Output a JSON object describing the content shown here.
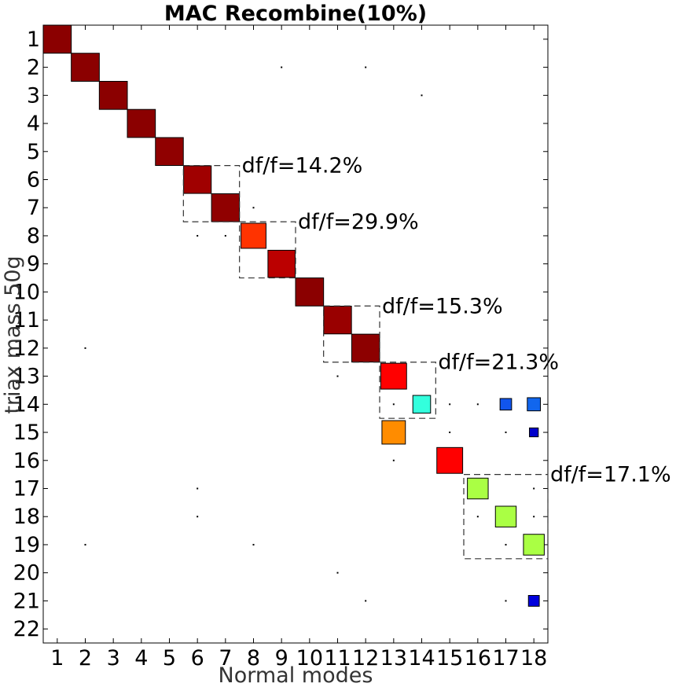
{
  "chart_data": {
    "type": "heatmap",
    "title": "MAC Recombine(10%)",
    "xlabel": "Normal modes",
    "ylabel": "triax mass 50g",
    "x_categories": [
      "1",
      "2",
      "3",
      "4",
      "5",
      "6",
      "7",
      "8",
      "9",
      "10",
      "11",
      "12",
      "13",
      "14",
      "15",
      "16",
      "17",
      "18"
    ],
    "y_categories": [
      "1",
      "2",
      "3",
      "4",
      "5",
      "6",
      "7",
      "8",
      "9",
      "10",
      "11",
      "12",
      "13",
      "14",
      "15",
      "16",
      "17",
      "18",
      "19",
      "20",
      "21",
      "22"
    ],
    "xlim": [
      0.5,
      18.5
    ],
    "ylim": [
      0.5,
      22.5
    ],
    "y_inverted": true,
    "grid": false,
    "encoding": "square size and color both scale with MAC value (0 to 1)",
    "cells": [
      {
        "x": 1,
        "y": 1,
        "value": 1.0,
        "color": "#8b0000"
      },
      {
        "x": 2,
        "y": 2,
        "value": 1.0,
        "color": "#8b0000"
      },
      {
        "x": 3,
        "y": 3,
        "value": 1.0,
        "color": "#8b0000"
      },
      {
        "x": 4,
        "y": 4,
        "value": 1.0,
        "color": "#8b0000"
      },
      {
        "x": 5,
        "y": 5,
        "value": 0.99,
        "color": "#900000"
      },
      {
        "x": 6,
        "y": 6,
        "value": 0.97,
        "color": "#a00000"
      },
      {
        "x": 7,
        "y": 7,
        "value": 0.99,
        "color": "#900000"
      },
      {
        "x": 8,
        "y": 8,
        "value": 0.8,
        "color": "#ff3300"
      },
      {
        "x": 9,
        "y": 9,
        "value": 0.94,
        "color": "#bb0000"
      },
      {
        "x": 10,
        "y": 10,
        "value": 1.0,
        "color": "#8b0000"
      },
      {
        "x": 11,
        "y": 11,
        "value": 0.98,
        "color": "#990000"
      },
      {
        "x": 12,
        "y": 12,
        "value": 0.99,
        "color": "#8d0000"
      },
      {
        "x": 13,
        "y": 13,
        "value": 0.85,
        "color": "#ff0000"
      },
      {
        "x": 14,
        "y": 14,
        "value": 0.4,
        "color": "#33ffdd"
      },
      {
        "x": 13,
        "y": 15,
        "value": 0.7,
        "color": "#ff8c00"
      },
      {
        "x": 15,
        "y": 16,
        "value": 0.85,
        "color": "#ff0000"
      },
      {
        "x": 16,
        "y": 17,
        "value": 0.55,
        "color": "#aaff44"
      },
      {
        "x": 17,
        "y": 18,
        "value": 0.55,
        "color": "#aaff44"
      },
      {
        "x": 18,
        "y": 19,
        "value": 0.55,
        "color": "#aaff44"
      },
      {
        "x": 17,
        "y": 14,
        "value": 0.17,
        "color": "#1155ee"
      },
      {
        "x": 18,
        "y": 14,
        "value": 0.22,
        "color": "#1166ee"
      },
      {
        "x": 18,
        "y": 15,
        "value": 0.1,
        "color": "#0000cc"
      },
      {
        "x": 18,
        "y": 21,
        "value": 0.15,
        "color": "#0000dd"
      }
    ],
    "small_values": [
      {
        "x": 9,
        "y": 2
      },
      {
        "x": 12,
        "y": 2
      },
      {
        "x": 14,
        "y": 3
      },
      {
        "x": 7,
        "y": 7
      },
      {
        "x": 8,
        "y": 7
      },
      {
        "x": 6,
        "y": 8
      },
      {
        "x": 7,
        "y": 8
      },
      {
        "x": 11,
        "y": 11
      },
      {
        "x": 2,
        "y": 12
      },
      {
        "x": 12,
        "y": 12
      },
      {
        "x": 11,
        "y": 13
      },
      {
        "x": 13,
        "y": 14
      },
      {
        "x": 15,
        "y": 14
      },
      {
        "x": 16,
        "y": 14
      },
      {
        "x": 15,
        "y": 15
      },
      {
        "x": 17,
        "y": 15
      },
      {
        "x": 13,
        "y": 16
      },
      {
        "x": 6,
        "y": 17
      },
      {
        "x": 18,
        "y": 17
      },
      {
        "x": 6,
        "y": 18
      },
      {
        "x": 16,
        "y": 18
      },
      {
        "x": 18,
        "y": 18
      },
      {
        "x": 2,
        "y": 19
      },
      {
        "x": 8,
        "y": 19
      },
      {
        "x": 17,
        "y": 19
      },
      {
        "x": 11,
        "y": 20
      },
      {
        "x": 12,
        "y": 21
      },
      {
        "x": 17,
        "y": 21
      }
    ],
    "annotations": [
      {
        "text": "df/f=14.2%",
        "box_modes": [
          6,
          7
        ],
        "box_rows": [
          6,
          7
        ]
      },
      {
        "text": "df/f=29.9%",
        "box_modes": [
          8,
          9
        ],
        "box_rows": [
          8,
          9
        ]
      },
      {
        "text": "df/f=15.3%",
        "box_modes": [
          11,
          12
        ],
        "box_rows": [
          11,
          12
        ]
      },
      {
        "text": "df/f=21.3%",
        "box_modes": [
          13,
          14
        ],
        "box_rows": [
          13,
          14
        ]
      },
      {
        "text": "df/f=17.1%",
        "box_modes": [
          16,
          18
        ],
        "box_rows": [
          17,
          19
        ]
      }
    ]
  }
}
